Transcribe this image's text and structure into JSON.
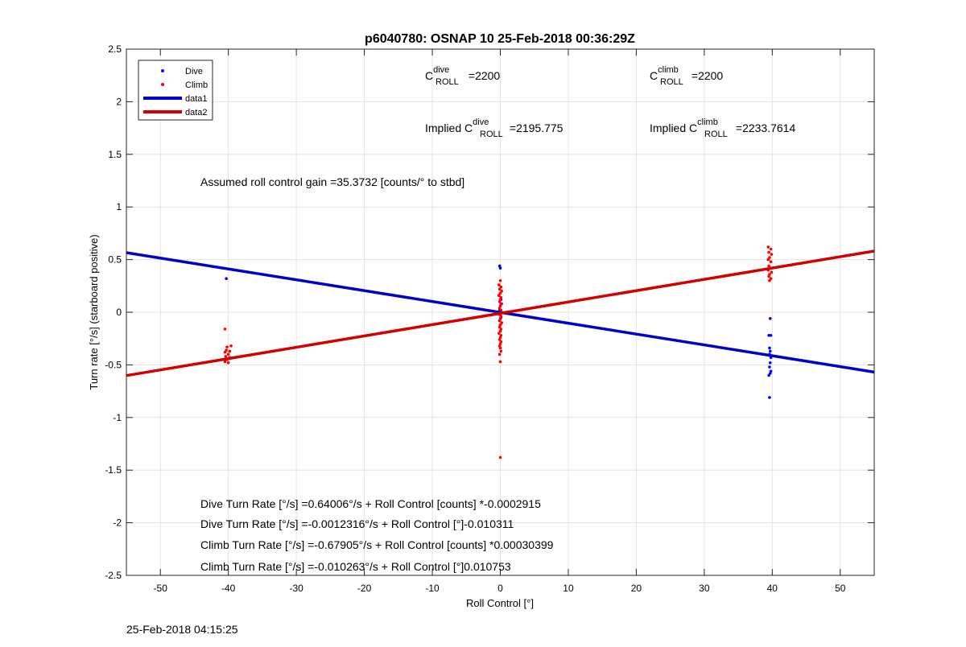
{
  "chart_data": {
    "type": "scatter",
    "title": "p6040780: OSNAP 10 25-Feb-2018 00:36:29Z",
    "xlabel": "Roll Control [°]",
    "ylabel": "Turn rate [°/s] (starboard positive)",
    "xlim": [
      -55,
      55
    ],
    "ylim": [
      -2.5,
      2.5
    ],
    "xticks": [
      -50,
      -40,
      -30,
      -20,
      -10,
      0,
      10,
      20,
      30,
      40,
      50
    ],
    "yticks": [
      2.5,
      2,
      1.5,
      1,
      0.5,
      0,
      -0.5,
      -1,
      -1.5,
      -2,
      -2.5
    ],
    "xtick_labels": [
      "-50",
      "-40",
      "-30",
      "-20",
      "-10",
      "0",
      "10",
      "20",
      "30",
      "40",
      "50"
    ],
    "ytick_labels": [
      "2.5",
      "2",
      "1.5",
      "1",
      "0.5",
      "0",
      "-0.5",
      "-1",
      "-1.5",
      "-2",
      "-2.5"
    ],
    "grid": true,
    "legend_position": "top-left",
    "series": [
      {
        "name": "Dive",
        "kind": "points",
        "color": "#0000ff",
        "points": [
          [
            -40.3,
            0.32
          ],
          [
            -0.1,
            0.44
          ],
          [
            0.0,
            0.42
          ],
          [
            -0.2,
            0.16
          ],
          [
            0.1,
            0.08
          ],
          [
            -0.1,
            0.02
          ],
          [
            0.0,
            -0.02
          ],
          [
            0.1,
            -0.05
          ],
          [
            -0.1,
            -0.08
          ],
          [
            0.0,
            -0.12
          ],
          [
            0.1,
            0.12
          ],
          [
            39.7,
            -0.06
          ],
          [
            39.5,
            -0.22
          ],
          [
            39.8,
            -0.22
          ],
          [
            39.6,
            -0.34
          ],
          [
            39.7,
            -0.37
          ],
          [
            39.6,
            -0.4
          ],
          [
            39.8,
            -0.43
          ],
          [
            39.7,
            -0.48
          ],
          [
            39.6,
            -0.52
          ],
          [
            39.8,
            -0.56
          ],
          [
            39.7,
            -0.58
          ],
          [
            39.5,
            -0.6
          ],
          [
            39.6,
            -0.81
          ]
        ]
      },
      {
        "name": "Climb",
        "kind": "points",
        "color": "#ff0000",
        "points": [
          [
            -40.5,
            -0.16
          ],
          [
            -40.2,
            -0.33
          ],
          [
            -39.6,
            -0.32
          ],
          [
            -40.3,
            -0.36
          ],
          [
            -39.8,
            -0.37
          ],
          [
            -40.5,
            -0.38
          ],
          [
            -40.0,
            -0.4
          ],
          [
            -40.4,
            -0.42
          ],
          [
            -39.8,
            -0.43
          ],
          [
            -40.2,
            -0.45
          ],
          [
            -40.5,
            -0.47
          ],
          [
            -40.0,
            -0.48
          ],
          [
            0.0,
            0.3
          ],
          [
            -0.2,
            0.26
          ],
          [
            0.1,
            0.24
          ],
          [
            -0.1,
            0.22
          ],
          [
            0.2,
            0.2
          ],
          [
            0.0,
            0.18
          ],
          [
            -0.2,
            0.16
          ],
          [
            0.1,
            0.14
          ],
          [
            0.0,
            0.12
          ],
          [
            -0.1,
            0.1
          ],
          [
            0.2,
            0.08
          ],
          [
            0.0,
            0.06
          ],
          [
            -0.1,
            0.04
          ],
          [
            0.1,
            0.02
          ],
          [
            0.0,
            0.0
          ],
          [
            -0.2,
            -0.02
          ],
          [
            0.1,
            -0.04
          ],
          [
            0.0,
            -0.06
          ],
          [
            -0.1,
            -0.08
          ],
          [
            0.2,
            -0.1
          ],
          [
            0.0,
            -0.12
          ],
          [
            -0.1,
            -0.14
          ],
          [
            0.1,
            -0.16
          ],
          [
            0.0,
            -0.18
          ],
          [
            -0.2,
            -0.2
          ],
          [
            0.1,
            -0.22
          ],
          [
            0.0,
            -0.24
          ],
          [
            -0.1,
            -0.26
          ],
          [
            0.1,
            -0.28
          ],
          [
            0.0,
            -0.3
          ],
          [
            -0.1,
            -0.32
          ],
          [
            0.0,
            -0.34
          ],
          [
            0.1,
            -0.37
          ],
          [
            -0.1,
            -0.4
          ],
          [
            0.0,
            -0.47
          ],
          [
            0.0,
            -1.38
          ],
          [
            36.5,
            0.38
          ],
          [
            39.4,
            0.62
          ],
          [
            39.8,
            0.6
          ],
          [
            39.5,
            0.57
          ],
          [
            39.9,
            0.55
          ],
          [
            39.6,
            0.52
          ],
          [
            39.4,
            0.5
          ],
          [
            39.8,
            0.48
          ],
          [
            39.5,
            0.44
          ],
          [
            39.7,
            0.42
          ],
          [
            39.4,
            0.4
          ],
          [
            39.9,
            0.38
          ],
          [
            39.6,
            0.36
          ],
          [
            39.5,
            0.34
          ],
          [
            39.8,
            0.32
          ],
          [
            39.6,
            0.3
          ]
        ]
      },
      {
        "name": "data1",
        "kind": "line",
        "color": "#0000c8",
        "slope": -0.010311,
        "intercept": -0.0012316
      },
      {
        "name": "data2",
        "kind": "line",
        "color": "#d40000",
        "slope": 0.010753,
        "intercept": -0.010263
      }
    ],
    "annotations": {
      "croll_dive": {
        "base": "C",
        "sup": "dive",
        "sub": "ROLL",
        "value": " =2200"
      },
      "croll_climb": {
        "base": "C",
        "sup": "climb",
        "sub": "ROLL",
        "value": " =2200"
      },
      "implied_dive": {
        "prefix": "Implied C",
        "sup": "dive",
        "sub": "ROLL",
        "value": " =2195.775"
      },
      "implied_climb": {
        "prefix": "Implied C",
        "sup": "climb",
        "sub": "ROLL",
        "value": " =2233.7614"
      },
      "gain": "Assumed roll control gain =35.3732 [counts/° to stbd]",
      "eq1": "Dive Turn Rate [°/s] =0.64006°/s + Roll Control [counts] *-0.0002915",
      "eq2": "Dive Turn Rate [°/s] =-0.0012316°/s + Roll Control [°]-0.010311",
      "eq3": "Climb Turn Rate [°/s] =-0.67905°/s + Roll Control [counts] *0.00030399",
      "eq4": "Climb Turn Rate [°/s] =-0.010263°/s + Roll Control [°]0.010753"
    }
  },
  "footer_timestamp": "25-Feb-2018 04:15:25"
}
